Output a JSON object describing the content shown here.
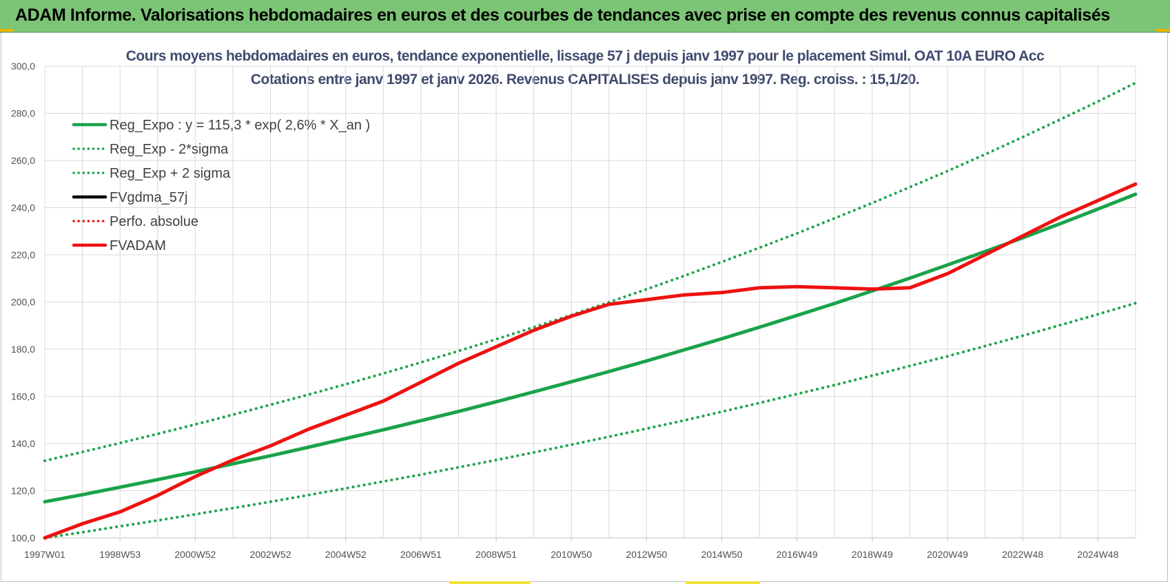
{
  "header": {
    "title": "ADAM Informe. Valorisations hebdomadaires en euros et des courbes de tendances avec prise en compte des revenus connus capitalisés"
  },
  "colors": {
    "banner": "#7cc576",
    "reg_expo": "#1aa34a",
    "fvadam": "#ee1111",
    "fvgdma": "#000000",
    "grid": "#d9d9d9"
  },
  "chart_data": {
    "type": "line",
    "title": "Cours moyens hebdomadaires en euros, tendance exponentielle, lissage 57 j depuis janv 1997 pour le placement Simul. OAT 10A EURO Acc",
    "subtitle": "Cotations entre janv 1997 et janv 2026. Revenus CAPITALISES depuis janv 1997. Reg. croiss. : 15,1/20.",
    "xlabel": "",
    "ylabel": "",
    "ylim": [
      100,
      300
    ],
    "y_ticks": [
      "100,0",
      "120,0",
      "140,0",
      "160,0",
      "180,0",
      "200,0",
      "220,0",
      "240,0",
      "260,0",
      "280,0",
      "300,0"
    ],
    "x_ticks": [
      "1997W01",
      "1998W53",
      "2000W52",
      "2002W52",
      "2004W52",
      "2006W51",
      "2008W51",
      "2010W50",
      "2012W50",
      "2014W50",
      "2016W49",
      "2018W49",
      "2020W49",
      "2022W48",
      "2024W48"
    ],
    "grid": true,
    "legend_position": "top-left",
    "x_years": [
      0,
      1,
      2,
      3,
      4,
      5,
      6,
      7,
      8,
      9,
      10,
      11,
      12,
      13,
      14,
      15,
      16,
      17,
      18,
      19,
      20,
      21,
      22,
      23,
      24,
      25,
      26,
      27,
      28,
      29
    ],
    "series": [
      {
        "name": "Reg_Expo : y = 115,3 * exp( 2,6% *  X_an )",
        "style": "solid",
        "color": "#1aa34a",
        "values": [
          115.3,
          118.3,
          121.5,
          124.7,
          128.0,
          131.4,
          134.8,
          138.4,
          142.1,
          145.8,
          149.7,
          153.6,
          157.7,
          161.9,
          166.2,
          170.5,
          175.0,
          179.7,
          184.4,
          189.3,
          194.3,
          199.4,
          204.7,
          210.1,
          215.7,
          221.4,
          227.2,
          233.2,
          239.4,
          245.7
        ]
      },
      {
        "name": "Reg_Exp - 2*sigma",
        "style": "dotted",
        "color": "#1aa34a",
        "values": [
          100.0,
          102.4,
          104.9,
          107.4,
          110.0,
          112.6,
          115.3,
          118.1,
          121.0,
          123.9,
          126.8,
          129.9,
          133.0,
          136.2,
          139.5,
          142.9,
          146.3,
          149.8,
          153.5,
          157.2,
          161.0,
          164.8,
          168.8,
          172.9,
          177.0,
          181.3,
          185.7,
          190.2,
          194.8,
          199.5
        ]
      },
      {
        "name": "Reg_Exp + 2 sigma",
        "style": "dotted",
        "color": "#1aa34a",
        "values": [
          132.7,
          136.4,
          140.2,
          144.1,
          148.1,
          152.2,
          156.4,
          160.7,
          165.1,
          169.7,
          174.4,
          179.2,
          184.2,
          189.3,
          194.5,
          199.9,
          205.4,
          211.1,
          217.0,
          223.0,
          229.1,
          235.5,
          242.0,
          248.7,
          255.5,
          262.6,
          269.9,
          277.4,
          285.0,
          292.9
        ]
      },
      {
        "name": "FVgdma_57j",
        "style": "solid",
        "color": "#000000",
        "values": []
      },
      {
        "name": "Perfo. absolue",
        "style": "dotted",
        "color": "#ee1111",
        "values": []
      },
      {
        "name": "FVADAM",
        "style": "solid",
        "color": "#ee1111",
        "values": [
          100.0,
          106.0,
          111.0,
          118.0,
          126.0,
          133.0,
          139.0,
          146.0,
          152.0,
          158.0,
          166.0,
          174.0,
          181.0,
          188.0,
          194.0,
          199.0,
          201.0,
          203.0,
          204.0,
          206.0,
          206.5,
          206.0,
          205.5,
          206.0,
          212.0,
          220.0,
          228.0,
          236.0,
          243.0,
          250.0
        ]
      }
    ]
  }
}
